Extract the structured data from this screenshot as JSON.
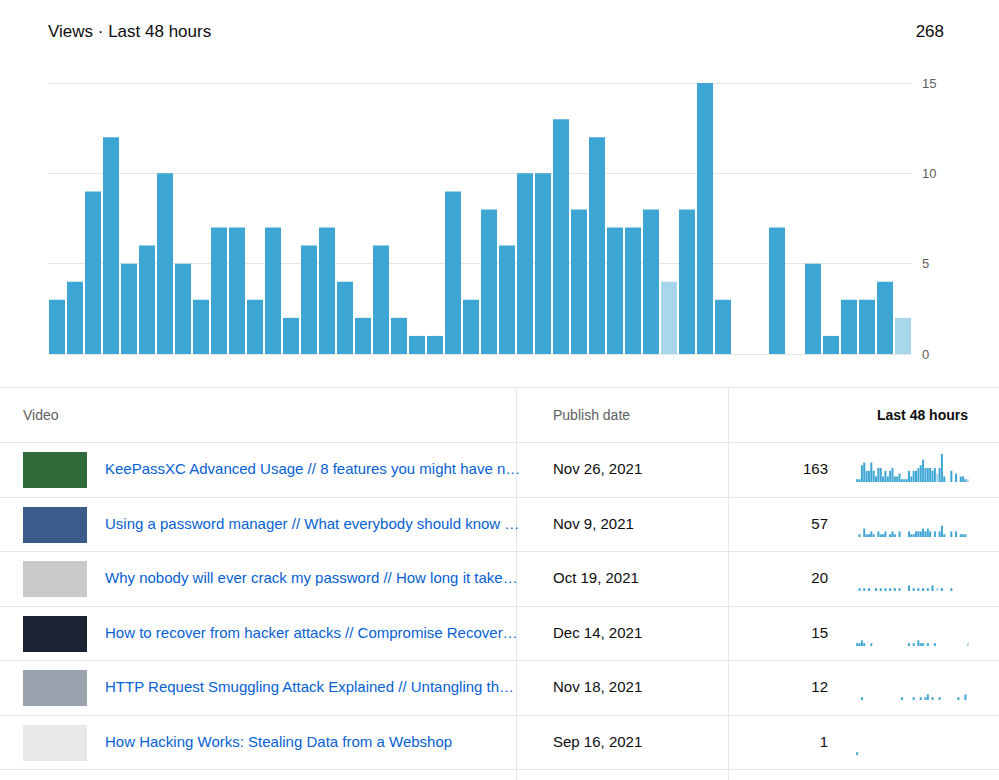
{
  "header": {
    "title": "Views · Last 48 hours",
    "total": 268
  },
  "chart_data": {
    "type": "bar",
    "categories": [
      null,
      null,
      null,
      null,
      null,
      null,
      null,
      null,
      null,
      null,
      null,
      null,
      null,
      null,
      null,
      null,
      null,
      null,
      null,
      null,
      null,
      null,
      null,
      null,
      null,
      null,
      null,
      null,
      null,
      null,
      null,
      null,
      null,
      null,
      null,
      null,
      null,
      null,
      null,
      null,
      null,
      null,
      null,
      null,
      null,
      null,
      null,
      null
    ],
    "values": [
      3,
      4,
      9,
      12,
      5,
      6,
      10,
      5,
      3,
      7,
      7,
      3,
      7,
      2,
      6,
      7,
      4,
      2,
      6,
      2,
      1,
      1,
      9,
      3,
      8,
      6,
      10,
      10,
      13,
      8,
      12,
      7,
      7,
      8,
      4,
      8,
      15,
      3,
      0,
      0,
      7,
      0,
      5,
      1,
      3,
      3,
      4,
      2
    ],
    "colors": [
      "#3ea6d4",
      "#3ea6d4",
      "#3ea6d4",
      "#3ea6d4",
      "#3ea6d4",
      "#3ea6d4",
      "#3ea6d4",
      "#3ea6d4",
      "#3ea6d4",
      "#3ea6d4",
      "#3ea6d4",
      "#3ea6d4",
      "#3ea6d4",
      "#3ea6d4",
      "#3ea6d4",
      "#3ea6d4",
      "#3ea6d4",
      "#3ea6d4",
      "#3ea6d4",
      "#3ea6d4",
      "#3ea6d4",
      "#3ea6d4",
      "#3ea6d4",
      "#3ea6d4",
      "#3ea6d4",
      "#3ea6d4",
      "#3ea6d4",
      "#3ea6d4",
      "#3ea6d4",
      "#3ea6d4",
      "#3ea6d4",
      "#3ea6d4",
      "#3ea6d4",
      "#3ea6d4",
      "#a8d6ea",
      "#3ea6d4",
      "#3ea6d4",
      "#3ea6d4",
      "#3ea6d4",
      "#3ea6d4",
      "#3ea6d4",
      "#3ea6d4",
      "#3ea6d4",
      "#3ea6d4",
      "#3ea6d4",
      "#3ea6d4",
      "#3ea6d4",
      "#a8d6ea"
    ],
    "ylim": [
      0,
      15
    ],
    "yticks": [
      0,
      5,
      10,
      15
    ],
    "grid": true,
    "tick_labels": "y"
  },
  "table": {
    "columns": [
      "Video",
      "Publish date",
      "Last 48 hours"
    ],
    "rows": [
      {
        "title": "KeePassXC Advanced Usage // 8 features you might have n…",
        "publish_date": "Nov 26, 2021",
        "views": 163,
        "sparkline": [
          1,
          1,
          6,
          7,
          4,
          4,
          7,
          4,
          2,
          5,
          5,
          2,
          4,
          2,
          4,
          5,
          2,
          2,
          3,
          1,
          1,
          1,
          4,
          2,
          4,
          4,
          5,
          6,
          8,
          5,
          5,
          5,
          4,
          5,
          3,
          5,
          10,
          2,
          0,
          0,
          4,
          0,
          3,
          0,
          2,
          2,
          1,
          1
        ]
      },
      {
        "title": "Using a password manager // What everybody should know …",
        "publish_date": "Nov 9, 2021",
        "views": 57,
        "sparkline": [
          0,
          1,
          0,
          3,
          1,
          1,
          2,
          1,
          0,
          2,
          1,
          1,
          2,
          0,
          1,
          2,
          1,
          0,
          2,
          0,
          0,
          0,
          2,
          1,
          1,
          2,
          2,
          2,
          3,
          2,
          3,
          2,
          0,
          2,
          0,
          2,
          4,
          1,
          0,
          0,
          2,
          0,
          2,
          0,
          1,
          1,
          1,
          0
        ]
      },
      {
        "title": "Why nobody will ever crack my password // How long it take…",
        "publish_date": "Oct 19, 2021",
        "views": 20,
        "sparkline": [
          0,
          1,
          0,
          1,
          0,
          1,
          0,
          0,
          1,
          0,
          1,
          0,
          1,
          0,
          1,
          0,
          1,
          0,
          1,
          0,
          0,
          0,
          2,
          0,
          1,
          0,
          1,
          0,
          1,
          0,
          1,
          0,
          2,
          0,
          1,
          0,
          1,
          0,
          0,
          0,
          1,
          0,
          0,
          0,
          0,
          0,
          0,
          0
        ]
      },
      {
        "title": "How to recover from hacker attacks // Compromise Recover…",
        "publish_date": "Dec 14, 2021",
        "views": 15,
        "sparkline": [
          1,
          1,
          2,
          1,
          0,
          0,
          1,
          0,
          0,
          0,
          0,
          0,
          0,
          0,
          0,
          0,
          0,
          0,
          0,
          0,
          0,
          0,
          1,
          0,
          1,
          0,
          2,
          1,
          1,
          0,
          1,
          0,
          0,
          1,
          0,
          0,
          0,
          0,
          0,
          0,
          0,
          0,
          0,
          0,
          0,
          0,
          0,
          1
        ]
      },
      {
        "title": "HTTP Request Smuggling Attack Explained // Untangling th…",
        "publish_date": "Nov 18, 2021",
        "views": 12,
        "sparkline": [
          0,
          0,
          1,
          0,
          0,
          0,
          0,
          0,
          0,
          0,
          0,
          0,
          0,
          0,
          0,
          0,
          0,
          0,
          0,
          1,
          0,
          0,
          0,
          0,
          1,
          0,
          0,
          1,
          0,
          1,
          2,
          0,
          1,
          0,
          0,
          1,
          0,
          0,
          0,
          0,
          0,
          0,
          0,
          1,
          0,
          0,
          2,
          0
        ]
      },
      {
        "title": "How Hacking Works: Stealing Data from a Webshop",
        "publish_date": "Sep 16, 2021",
        "views": 1,
        "sparkline": [
          1,
          0,
          0,
          0,
          0,
          0,
          0,
          0,
          0,
          0,
          0,
          0,
          0,
          0,
          0,
          0,
          0,
          0,
          0,
          0,
          0,
          0,
          0,
          0,
          0,
          0,
          0,
          0,
          0,
          0,
          0,
          0,
          0,
          0,
          0,
          0,
          0,
          0,
          0,
          0,
          0,
          0,
          0,
          0,
          0,
          0,
          0,
          0
        ]
      }
    ]
  }
}
